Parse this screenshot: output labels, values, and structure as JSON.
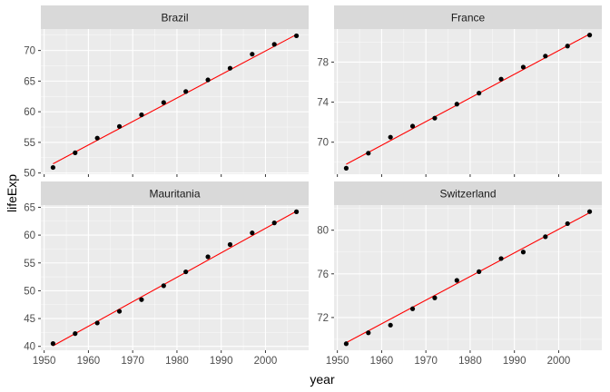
{
  "chart_data": {
    "type": "scatter",
    "xlabel": "year",
    "ylabel": "lifeExp",
    "fit_line": "linear",
    "colors": {
      "panel_bg": "#ebebeb",
      "strip_bg": "#d9d9d9",
      "grid_major": "#ffffff",
      "point": "#000000",
      "fit_line": "#ff0000",
      "tick_label": "#4d4d4d",
      "axis_title": "#000000"
    },
    "x_ticks": [
      1950,
      1960,
      1970,
      1980,
      1990,
      2000
    ],
    "xlim": [
      1949.25,
      2009.75
    ],
    "panels": [
      {
        "country": "Brazil",
        "x": [
          1952,
          1957,
          1962,
          1967,
          1972,
          1977,
          1982,
          1987,
          1992,
          1997,
          2002,
          2007
        ],
        "y": [
          50.9,
          53.3,
          55.7,
          57.6,
          59.5,
          61.5,
          63.3,
          65.2,
          67.1,
          69.4,
          71.0,
          72.4
        ],
        "fit": [
          51.5,
          72.6
        ],
        "ylim": [
          49.8,
          73.5
        ],
        "y_ticks": [
          50,
          55,
          60,
          65,
          70
        ]
      },
      {
        "country": "France",
        "x": [
          1952,
          1957,
          1962,
          1967,
          1972,
          1977,
          1982,
          1987,
          1992,
          1997,
          2002,
          2007
        ],
        "y": [
          67.4,
          68.9,
          70.5,
          71.6,
          72.4,
          73.8,
          74.9,
          76.3,
          77.5,
          78.6,
          79.6,
          80.7
        ],
        "fit": [
          67.8,
          80.8
        ],
        "ylim": [
          66.8,
          81.3
        ],
        "y_ticks": [
          70,
          74,
          78
        ]
      },
      {
        "country": "Mauritania",
        "x": [
          1952,
          1957,
          1962,
          1967,
          1972,
          1977,
          1982,
          1987,
          1992,
          1997,
          2002,
          2007
        ],
        "y": [
          40.5,
          42.3,
          44.2,
          46.3,
          48.4,
          50.9,
          53.4,
          56.1,
          58.3,
          60.4,
          62.2,
          64.2
        ],
        "fit": [
          40.1,
          64.3
        ],
        "ylim": [
          39.3,
          65.4
        ],
        "y_ticks": [
          40,
          45,
          50,
          55,
          60,
          65
        ]
      },
      {
        "country": "Switzerland",
        "x": [
          1952,
          1957,
          1962,
          1967,
          1972,
          1977,
          1982,
          1987,
          1992,
          1997,
          2002,
          2007
        ],
        "y": [
          69.6,
          70.6,
          71.3,
          72.8,
          73.8,
          75.4,
          76.2,
          77.4,
          78.0,
          79.4,
          80.6,
          81.7
        ],
        "fit": [
          69.7,
          81.6
        ],
        "ylim": [
          69.0,
          82.3
        ],
        "y_ticks": [
          72,
          76,
          80
        ]
      }
    ]
  }
}
